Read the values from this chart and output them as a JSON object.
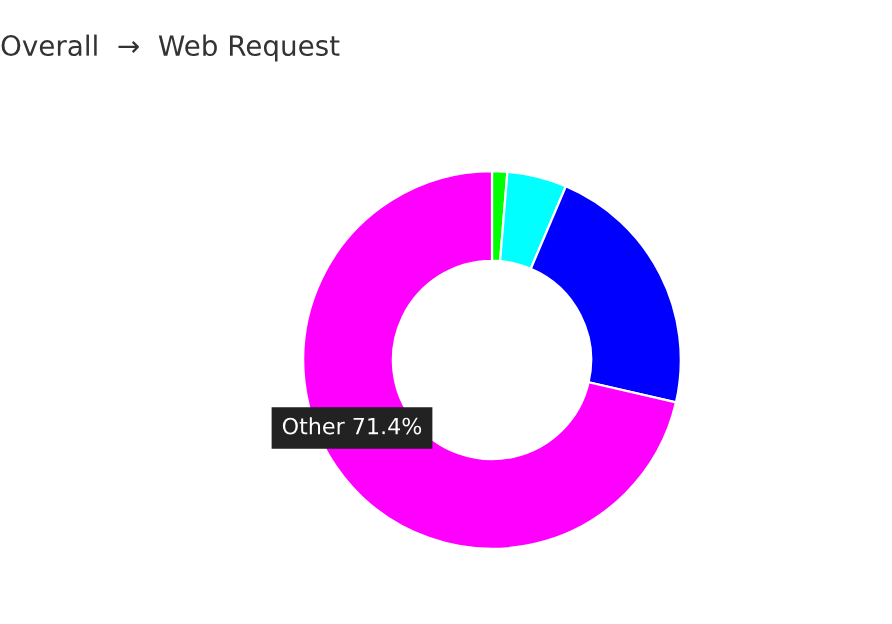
{
  "chart_data": {
    "type": "donut",
    "title": "Overall  →  Web Request",
    "categories": [
      null,
      null,
      null,
      null
    ],
    "values": [
      1.3,
      5.1,
      22.2,
      71.4
    ],
    "colors": [
      "#00ff00",
      "#00ffff",
      "#0000ff",
      "#ff00ff"
    ],
    "annotations": [
      "Other 71.4%"
    ]
  }
}
